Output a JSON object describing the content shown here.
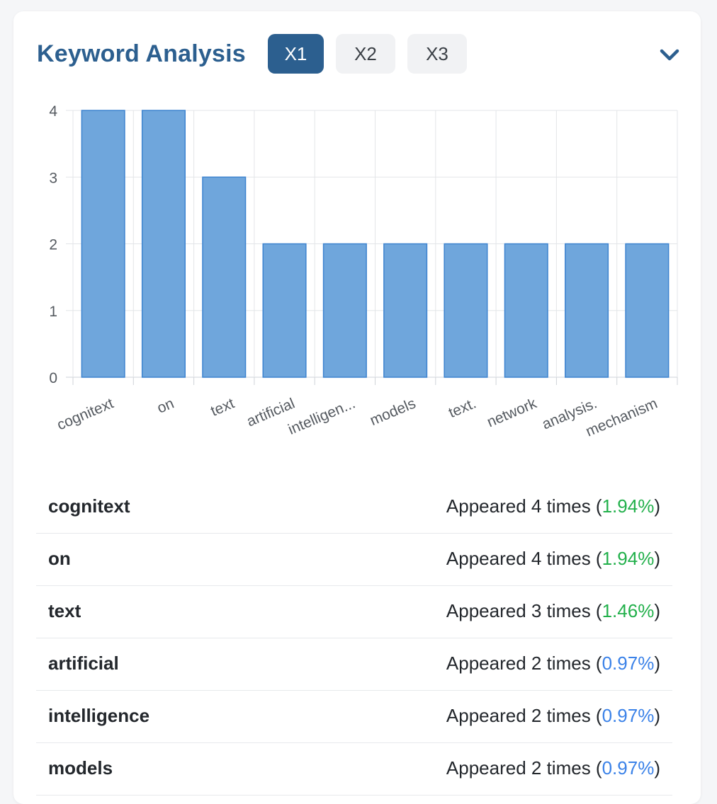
{
  "header": {
    "title": "Keyword Analysis",
    "tabs": [
      {
        "label": "X1",
        "active": true
      },
      {
        "label": "X2",
        "active": false
      },
      {
        "label": "X3",
        "active": false
      }
    ],
    "collapse_icon": "chevron-down-icon"
  },
  "colors": {
    "accent": "#2c5f8f",
    "bar_fill": "#6fa6dc",
    "bar_stroke": "#3d83cf",
    "pct_high": "#22b04b",
    "pct_low": "#3b82e8"
  },
  "chart_data": {
    "type": "bar",
    "categories": [
      "cognitext",
      "on",
      "text",
      "artificial",
      "intelligen...",
      "models",
      "text.",
      "network",
      "analysis.",
      "mechanism"
    ],
    "values": [
      4,
      4,
      3,
      2,
      2,
      2,
      2,
      2,
      2,
      2
    ],
    "yticks": [
      "0",
      "1",
      "2",
      "3",
      "4"
    ],
    "ylim": [
      0,
      4
    ],
    "grid": true,
    "legend": "none"
  },
  "keywords": [
    {
      "word": "cognitext",
      "prefix": "Appeared ",
      "count": "4",
      "mid": " times (",
      "pct": "1.94%",
      "suffix": ")",
      "level": "high"
    },
    {
      "word": "on",
      "prefix": "Appeared ",
      "count": "4",
      "mid": " times (",
      "pct": "1.94%",
      "suffix": ")",
      "level": "high"
    },
    {
      "word": "text",
      "prefix": "Appeared ",
      "count": "3",
      "mid": " times (",
      "pct": "1.46%",
      "suffix": ")",
      "level": "high"
    },
    {
      "word": "artificial",
      "prefix": "Appeared ",
      "count": "2",
      "mid": " times (",
      "pct": "0.97%",
      "suffix": ")",
      "level": "low"
    },
    {
      "word": "intelligence",
      "prefix": "Appeared ",
      "count": "2",
      "mid": " times (",
      "pct": "0.97%",
      "suffix": ")",
      "level": "low"
    },
    {
      "word": "models",
      "prefix": "Appeared ",
      "count": "2",
      "mid": " times (",
      "pct": "0.97%",
      "suffix": ")",
      "level": "low"
    }
  ]
}
